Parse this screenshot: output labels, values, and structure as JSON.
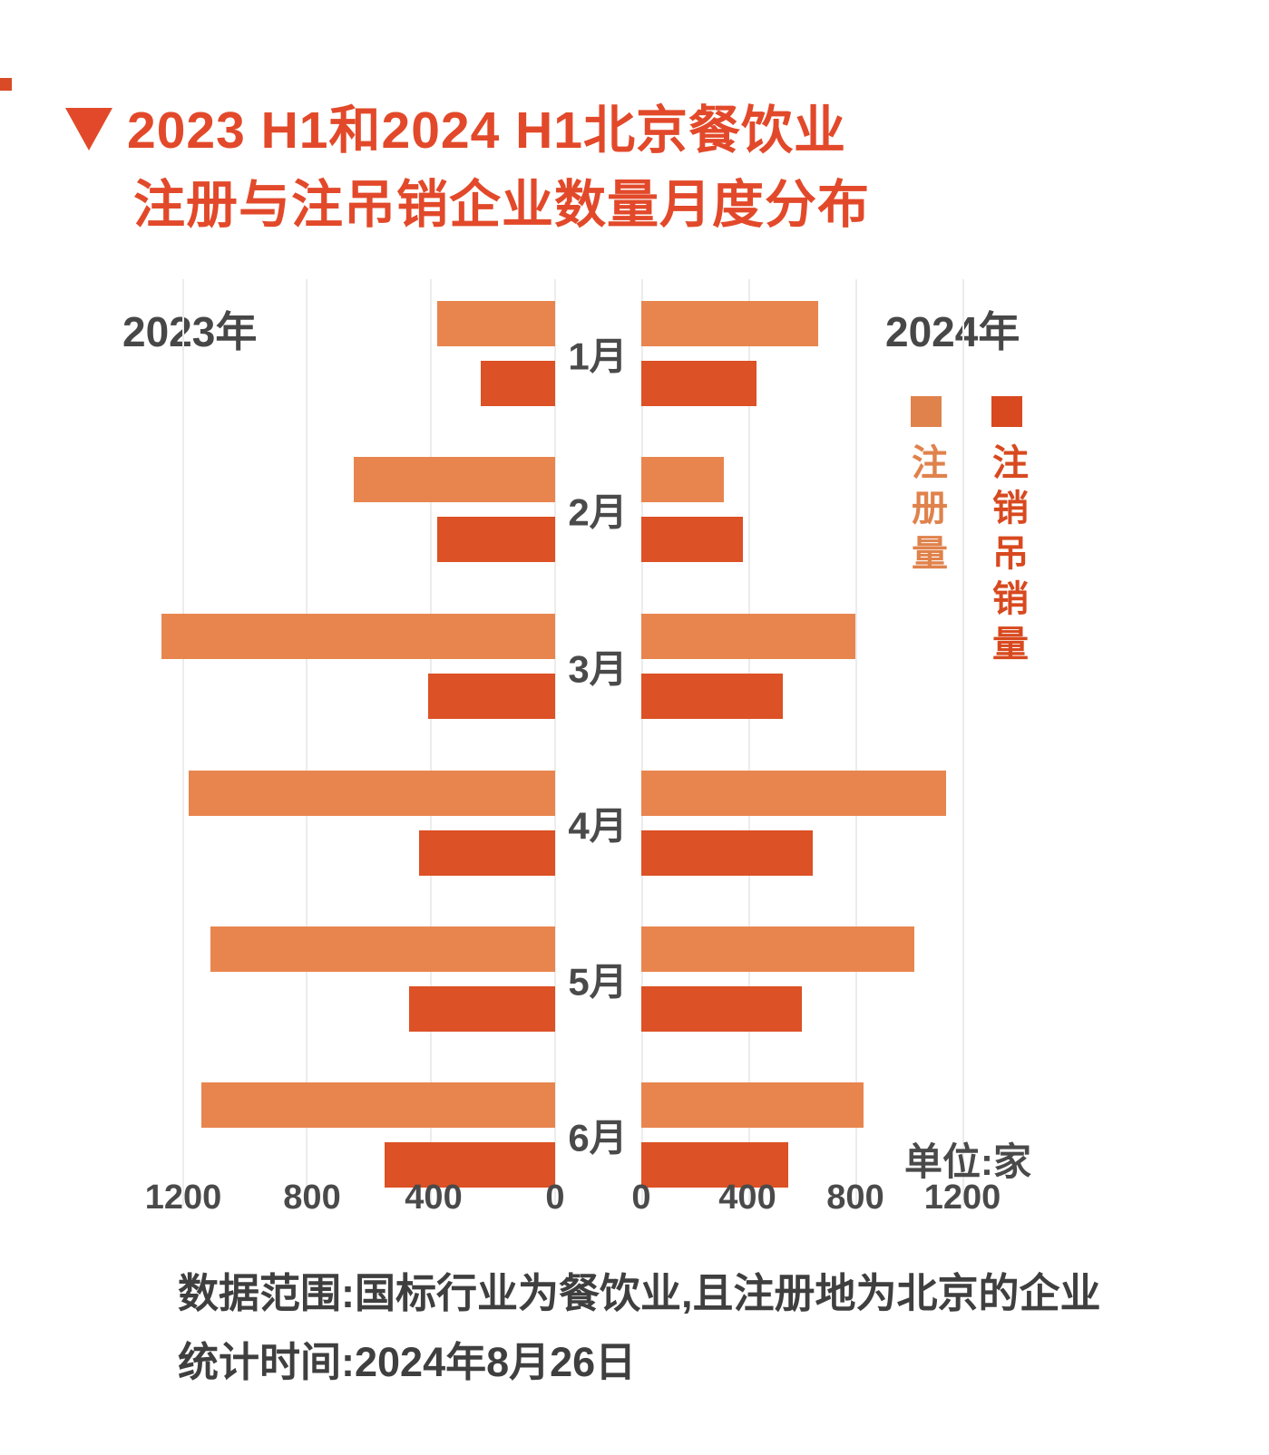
{
  "title": {
    "marker": "down-triangle",
    "line1": "2023 H1和2024 H1北京餐饮业",
    "line2": "注册与注吊销企业数量月度分布"
  },
  "chart_data": {
    "type": "bar",
    "layout": "horizontal-pyramid",
    "categories": [
      "1月",
      "2月",
      "3月",
      "4月",
      "5月",
      "6月"
    ],
    "series": [
      {
        "name": "2023年 注册量",
        "side": "left",
        "metric": "注册量",
        "values": [
          380,
          650,
          1270,
          1180,
          1110,
          1140
        ]
      },
      {
        "name": "2023年 注销吊销量",
        "side": "left",
        "metric": "注销吊销量",
        "values": [
          240,
          380,
          410,
          440,
          470,
          550
        ]
      },
      {
        "name": "2024年 注册量",
        "side": "right",
        "metric": "注册量",
        "values": [
          660,
          310,
          800,
          1140,
          1020,
          830
        ]
      },
      {
        "name": "2024年 注销吊销量",
        "side": "right",
        "metric": "注销吊销量",
        "values": [
          430,
          380,
          530,
          640,
          600,
          550
        ]
      }
    ],
    "axis": {
      "ticks_left": [
        1200,
        800,
        400,
        0
      ],
      "ticks_right": [
        0,
        400,
        800,
        1200
      ],
      "xlim": [
        0,
        1300
      ],
      "left_axis_reversed": true,
      "grid": true
    },
    "year_left": "2023年",
    "year_right": "2024年",
    "unit_label": "单位:家",
    "legend": [
      {
        "label": "注册量",
        "color": "#e0824c"
      },
      {
        "label": "注销吊销量",
        "color": "#d8491f"
      }
    ]
  },
  "colors": {
    "register_bar": "#e8854e",
    "deregister_bar": "#dc5125",
    "title": "#e2492a",
    "text": "#474747",
    "gridline": "#ececec"
  },
  "footnote": {
    "line1": "数据范围:国标行业为餐饮业,且注册地为北京的企业",
    "line2": "统计时间:2024年8月26日"
  }
}
